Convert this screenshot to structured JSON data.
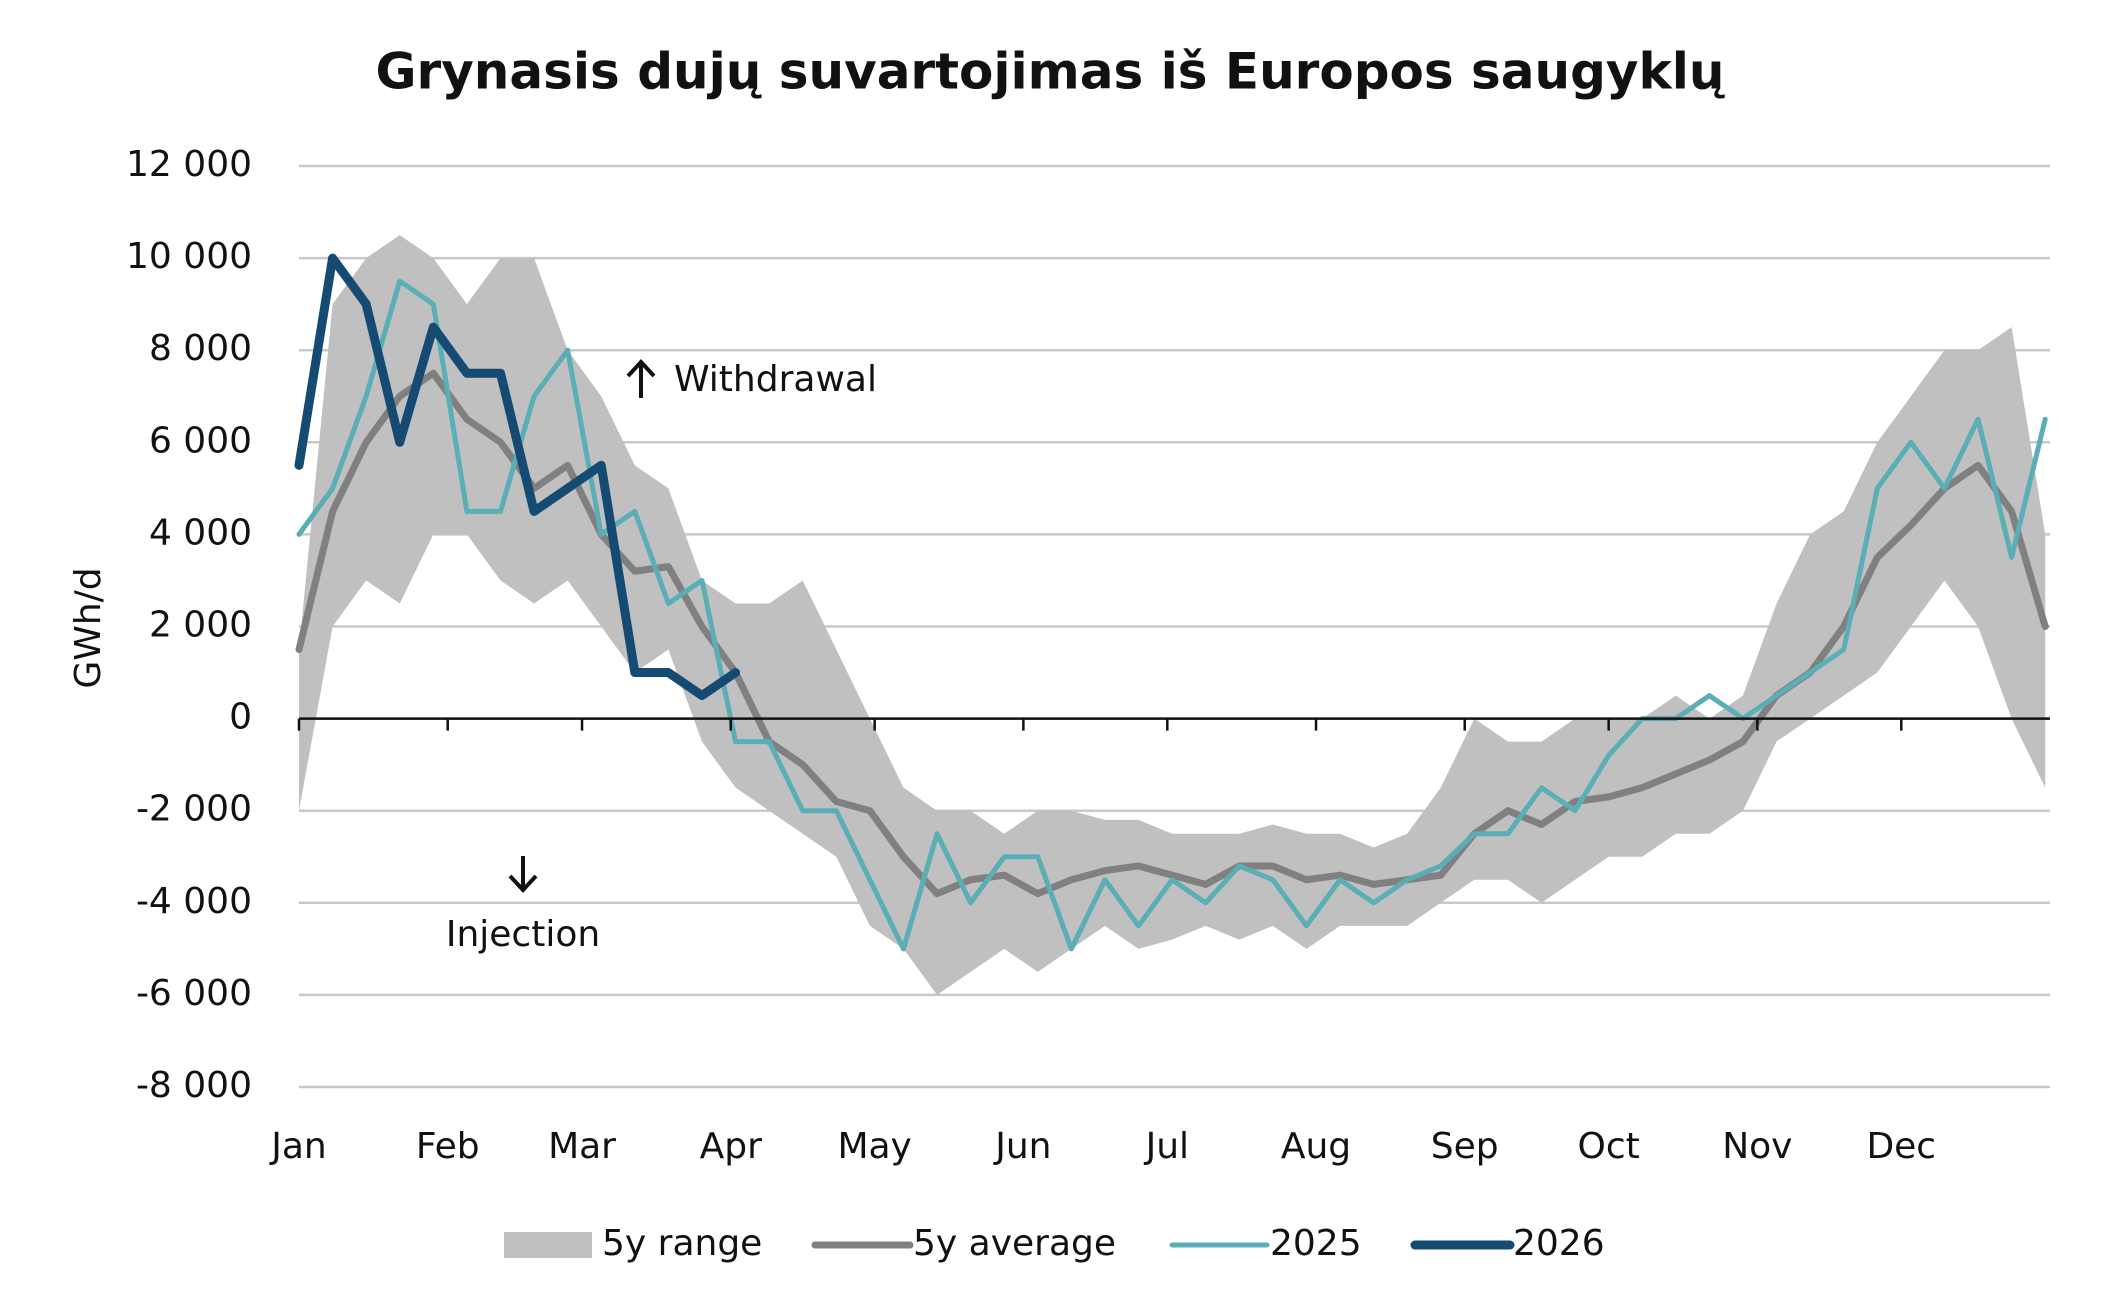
{
  "chart_data": {
    "type": "line",
    "title": "Grynasis dujų suvartojimas iš Europos saugyklų",
    "y_label": "GWh/d",
    "annotations": [
      "Withdrawal",
      "Injection"
    ],
    "xlim": [
      0,
      365
    ],
    "xticks": [
      {
        "value": 0,
        "label": "Jan"
      },
      {
        "value": 31,
        "label": "Feb"
      },
      {
        "value": 59,
        "label": "Mar"
      },
      {
        "value": 90,
        "label": "Apr"
      },
      {
        "value": 120,
        "label": "May"
      },
      {
        "value": 151,
        "label": "Jun"
      },
      {
        "value": 181,
        "label": "Jul"
      },
      {
        "value": 212,
        "label": "Aug"
      },
      {
        "value": 243,
        "label": "Sep"
      },
      {
        "value": 273,
        "label": "Oct"
      },
      {
        "value": 304,
        "label": "Nov"
      },
      {
        "value": 334,
        "label": "Dec"
      }
    ],
    "ylim": [
      -8000,
      12000
    ],
    "yticks": [
      {
        "value": -8000,
        "label": "-8 000"
      },
      {
        "value": -6000,
        "label": "-6 000"
      },
      {
        "value": -4000,
        "label": "-4 000"
      },
      {
        "value": -2000,
        "label": "-2 000"
      },
      0,
      {
        "value": 2000,
        "label": "2 000"
      },
      {
        "value": 4000,
        "label": "4 000"
      },
      {
        "value": 6000,
        "label": "6 000"
      },
      {
        "value": 8000,
        "label": "8 000"
      },
      {
        "value": 10000,
        "label": "10 000"
      },
      {
        "value": 12000,
        "label": "12 000"
      }
    ],
    "grid": true,
    "x": [
      0,
      7,
      14,
      21,
      28,
      35,
      42,
      49,
      56,
      63,
      70,
      77,
      84,
      91,
      98,
      105,
      112,
      119,
      126,
      133,
      140,
      147,
      154,
      161,
      168,
      175,
      182,
      189,
      196,
      203,
      210,
      217,
      224,
      231,
      238,
      245,
      252,
      259,
      266,
      273,
      280,
      287,
      294,
      301,
      308,
      315,
      322,
      329,
      336,
      343,
      350,
      357,
      364
    ],
    "series": [
      {
        "name": "5y range",
        "color": "#c0c0c0",
        "type": "area",
        "low": [
          -2000,
          2000,
          3000,
          2500,
          4000,
          4000,
          3000,
          2500,
          3000,
          2000,
          1000,
          1500,
          -500,
          -1500,
          -2000,
          -2500,
          -3000,
          -4500,
          -5000,
          -6000,
          -5500,
          -5000,
          -5500,
          -5000,
          -4500,
          -5000,
          -4800,
          -4500,
          -4800,
          -4500,
          -5000,
          -4500,
          -4500,
          -4500,
          -4000,
          -3500,
          -3500,
          -4000,
          -3500,
          -3000,
          -3000,
          -2500,
          -2500,
          -2000,
          -500,
          0,
          500,
          1000,
          2000,
          3000,
          2000,
          0,
          -1500
        ],
        "high": [
          1500,
          9000,
          10000,
          10500,
          10000,
          9000,
          10000,
          10000,
          8000,
          7000,
          5500,
          5000,
          3000,
          2500,
          2500,
          3000,
          1500,
          0,
          -1500,
          -2000,
          -2000,
          -2500,
          -2000,
          -2000,
          -2200,
          -2200,
          -2500,
          -2500,
          -2500,
          -2300,
          -2500,
          -2500,
          -2800,
          -2500,
          -1500,
          0,
          -500,
          -500,
          0,
          0,
          0,
          500,
          0,
          500,
          2500,
          4000,
          4500,
          6000,
          7000,
          8000,
          8000,
          8500,
          4000
        ]
      },
      {
        "name": "5y average",
        "color": "#808080",
        "width": 7,
        "values": [
          1500,
          4500,
          6000,
          7000,
          7500,
          6500,
          6000,
          5000,
          5500,
          4000,
          3200,
          3300,
          2000,
          1000,
          -500,
          -1000,
          -1800,
          -2000,
          -3000,
          -3800,
          -3500,
          -3400,
          -3800,
          -3500,
          -3300,
          -3200,
          -3400,
          -3600,
          -3200,
          -3200,
          -3500,
          -3400,
          -3600,
          -3500,
          -3400,
          -2500,
          -2000,
          -2300,
          -1800,
          -1700,
          -1500,
          -1200,
          -900,
          -500,
          500,
          1000,
          2000,
          3500,
          4200,
          5000,
          5500,
          4500,
          2000
        ]
      },
      {
        "name": "2025",
        "color": "#5aaeb6",
        "width": 5,
        "values": [
          4000,
          5000,
          7000,
          9500,
          9000,
          4500,
          4500,
          7000,
          8000,
          4000,
          4500,
          2500,
          3000,
          -500,
          -500,
          -2000,
          -2000,
          -3500,
          -5000,
          -2500,
          -4000,
          -3000,
          -3000,
          -5000,
          -3500,
          -4500,
          -3500,
          -4000,
          -3200,
          -3500,
          -4500,
          -3500,
          -4000,
          -3500,
          -3200,
          -2500,
          -2500,
          -1500,
          -2000,
          -800,
          0,
          0,
          500,
          0,
          500,
          1000,
          1500,
          5000,
          6000,
          5000,
          6500,
          3500,
          6500
        ]
      },
      {
        "name": "2026",
        "color": "#154a72",
        "width": 9,
        "values": [
          5500,
          10000,
          9000,
          6000,
          8500,
          7500,
          7500,
          4500,
          5000,
          5500,
          1000,
          1000,
          500,
          1000,
          null,
          null,
          null,
          null,
          null,
          null,
          null,
          null,
          null,
          null,
          null,
          null,
          null,
          null,
          null,
          null,
          null,
          null,
          null,
          null,
          null,
          null,
          null,
          null,
          null,
          null,
          null,
          null,
          null,
          null,
          null,
          null,
          null,
          null,
          null,
          null,
          null,
          null,
          null
        ]
      }
    ]
  }
}
